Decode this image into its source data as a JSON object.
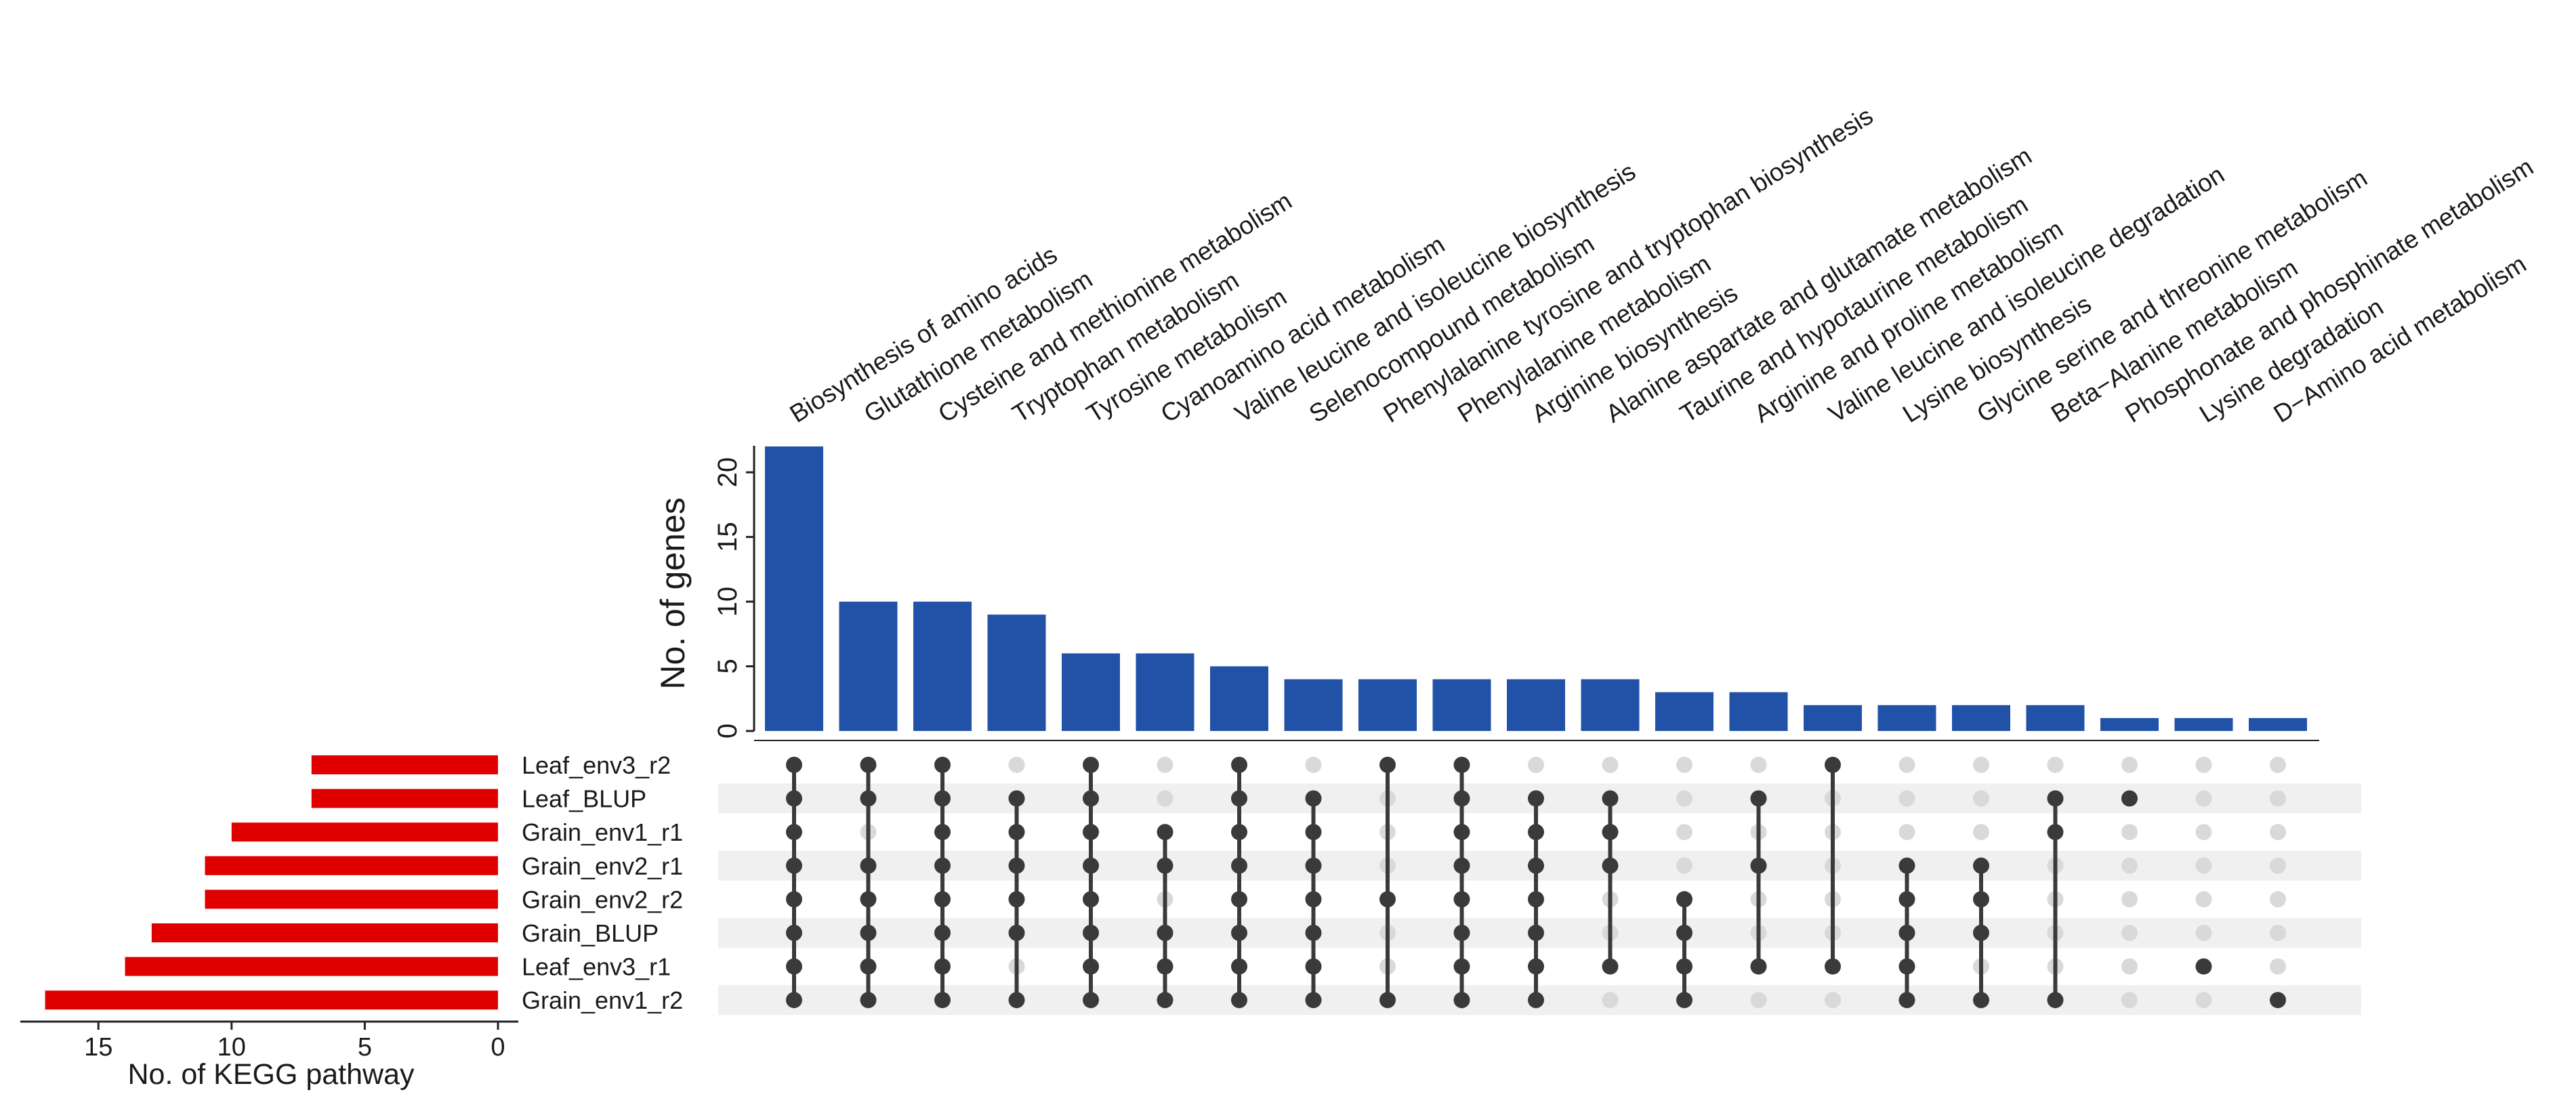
{
  "chart_data": {
    "type": "upset",
    "title": "",
    "intersections": {
      "ylabel": "No. of genes",
      "ylim": [
        0,
        22
      ],
      "yticks": [
        "0",
        "5",
        "10",
        "15",
        "20"
      ],
      "bar_color": "#2152a8",
      "labels": [
        "Biosynthesis of amino acids",
        "Glutathione metabolism",
        "Cysteine and methionine metabolism",
        "Tryptophan metabolism",
        "Tyrosine metabolism",
        "Cyanoamino acid metabolism",
        "Valine leucine and isoleucine biosynthesis",
        "Selenocompound metabolism",
        "Phenylalanine tyrosine and tryptophan biosynthesis",
        "Phenylalanine metabolism",
        "Arginine biosynthesis",
        "Alanine aspartate and glutamate metabolism",
        "Taurine and hypotaurine metabolism",
        "Arginine and proline metabolism",
        "Valine leucine and isoleucine degradation",
        "Lysine biosynthesis",
        "Glycine serine and threonine metabolism",
        "Beta−Alanine metabolism",
        "Phosphonate and phosphinate metabolism",
        "Lysine degradation",
        "D−Amino acid metabolism"
      ],
      "values": [
        22,
        10,
        10,
        9,
        6,
        6,
        5,
        4,
        4,
        4,
        4,
        4,
        3,
        3,
        2,
        2,
        2,
        2,
        1,
        1,
        1
      ]
    },
    "set_sizes": {
      "xlabel": "No. of KEGG pathway",
      "xlim": [
        0,
        18
      ],
      "xticks": [
        "15",
        "10",
        "5",
        "0"
      ],
      "bar_color": "#e00000",
      "sets": [
        "Leaf_env3_r2",
        "Leaf_BLUP",
        "Grain_env1_r1",
        "Grain_env2_r1",
        "Grain_env2_r2",
        "Grain_BLUP",
        "Leaf_env3_r1",
        "Grain_env1_r2"
      ],
      "values": [
        7,
        7,
        10,
        11,
        11,
        13,
        14,
        17
      ]
    },
    "matrix": {
      "active_color": "#3a3a3a",
      "inactive_color": "#d9d9d9",
      "stripe_color": "#f0f0f0",
      "membership": [
        [
          0,
          1,
          2,
          3,
          4,
          5,
          6,
          7
        ],
        [
          0,
          1,
          3,
          4,
          5,
          6,
          7
        ],
        [
          0,
          1,
          2,
          3,
          4,
          5,
          6,
          7
        ],
        [
          1,
          2,
          3,
          4,
          5,
          7
        ],
        [
          0,
          1,
          2,
          3,
          4,
          5,
          6,
          7
        ],
        [
          2,
          3,
          5,
          6,
          7
        ],
        [
          0,
          1,
          2,
          3,
          4,
          5,
          6,
          7
        ],
        [
          1,
          2,
          3,
          4,
          5,
          6,
          7
        ],
        [
          0,
          4,
          7
        ],
        [
          0,
          1,
          2,
          3,
          4,
          5,
          6,
          7
        ],
        [
          1,
          2,
          3,
          4,
          5,
          6,
          7
        ],
        [
          1,
          2,
          3,
          6
        ],
        [
          4,
          5,
          6,
          7
        ],
        [
          1,
          3,
          6
        ],
        [
          0,
          6
        ],
        [
          3,
          4,
          5,
          6,
          7
        ],
        [
          3,
          4,
          5,
          7
        ],
        [
          1,
          2,
          7
        ],
        [
          1
        ],
        [
          6
        ],
        [
          7
        ]
      ]
    }
  }
}
